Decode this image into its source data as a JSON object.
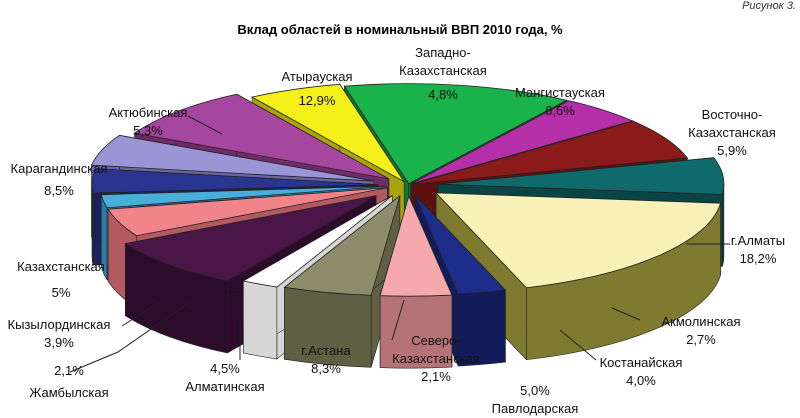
{
  "figure_label": "Рисунок 3.",
  "chart_data": {
    "type": "pie",
    "title": "Вклад областей в номинальный ВВП 2010 года, %",
    "slices": [
      {
        "label": "Атырауская",
        "value": 12.9,
        "value_text": "12,9%",
        "color": "#19b24b",
        "side": "#0f7a31"
      },
      {
        "label": "Западно-Казахстанская",
        "value": 4.8,
        "value_text": "4,8%",
        "color": "#b52fa8",
        "side": "#7b1d72"
      },
      {
        "label": "Мангистауская",
        "value": 6.6,
        "value_text": "6,6%",
        "color": "#8b1a1a",
        "side": "#5c1010"
      },
      {
        "label": "Восточно-Казахстанская",
        "value": 5.9,
        "value_text": "5,9%",
        "color": "#0f6b6b",
        "side": "#094545"
      },
      {
        "label": "г.Алматы",
        "value": 18.2,
        "value_text": "18,2%",
        "color": "#f7f1b8",
        "side": "#7e7a30"
      },
      {
        "label": "Акмолинская",
        "value": 2.7,
        "value_text": "2,7%",
        "color": "#1e2d8c",
        "side": "#121c5a"
      },
      {
        "label": "Костанайская",
        "value": 4.0,
        "value_text": "4,0%",
        "color": "#f6a9ad",
        "side": "#b57377"
      },
      {
        "label": "Павлодарская",
        "value": 5.0,
        "value_text": "5,0%",
        "color": "#8c8c6a",
        "side": "#5f5f44"
      },
      {
        "label": "Северо-Казахстанская",
        "value": 2.1,
        "value_text": "2,1%",
        "color": "#ffffff",
        "side": "#d6d6d6"
      },
      {
        "label": "г.Астана",
        "value": 8.3,
        "value_text": "8,3%",
        "color": "#4a1547",
        "side": "#2c0c2a"
      },
      {
        "label": "Алматинская",
        "value": 4.5,
        "value_text": "4,5%",
        "color": "#f1838a",
        "side": "#b25a60"
      },
      {
        "label": "Жамбылская",
        "value": 2.1,
        "value_text": "2,1%",
        "color": "#4aaedb",
        "side": "#2c7ea3"
      },
      {
        "label": "Кызылординская",
        "value": 3.9,
        "value_text": "3,9%",
        "color": "#2a3590",
        "side": "#1a2260"
      },
      {
        "label": "Казахстанская",
        "value": 5.0,
        "value_text": "5%",
        "color": "#9a96d6",
        "side": "#6a66a6"
      },
      {
        "label": "Карагандинская",
        "value": 8.5,
        "value_text": "8,5%",
        "color": "#a5469f",
        "side": "#6f2b6a"
      },
      {
        "label": "Актюбинская",
        "value": 5.3,
        "value_text": "5,3%",
        "color": "#f5ef1a",
        "side": "#a9a40e"
      }
    ]
  }
}
